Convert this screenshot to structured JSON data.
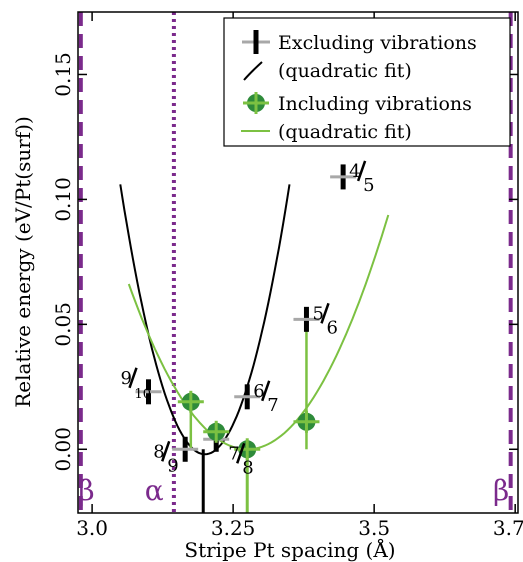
{
  "chart_data": {
    "type": "scatter",
    "xlabel": "Stripe Pt spacing (Å)",
    "ylabel": "Relative energy (eV/Pt(surf))",
    "xlim": [
      2.975,
      3.755
    ],
    "ylim": [
      -0.0255,
      0.175
    ],
    "xticks": [
      3.0,
      3.25,
      3.5,
      3.75
    ],
    "xtick_labels": [
      "3.0",
      "3.25",
      "3.5",
      "3.75"
    ],
    "yticks": [
      0.0,
      0.05,
      0.1,
      0.15
    ],
    "ytick_labels": [
      "0.00",
      "0.05",
      "0.10",
      "0.15"
    ],
    "grid": false,
    "legend_position": "top-right",
    "legend": [
      {
        "label_line1": "Excluding vibrations",
        "label_line2": "(quadratic fit)"
      },
      {
        "label_line1": "Including vibrations",
        "label_line2": "(quadratic fit)"
      }
    ],
    "series": [
      {
        "name": "Excluding vibrations",
        "color": "#000000",
        "marker_color": "#a8a8a8",
        "points": [
          {
            "label": "9/10",
            "num": "9",
            "den": "10",
            "x": 3.1,
            "y": 0.023,
            "err": 0.005
          },
          {
            "label": "8/9",
            "num": "8",
            "den": "9",
            "x": 3.165,
            "y": 0.0,
            "err": 0.005
          },
          {
            "label": "7/8",
            "num": "7",
            "den": "8",
            "x": 3.22,
            "y": 0.004,
            "err": 0.005
          },
          {
            "label": "6/7",
            "num": "6",
            "den": "7",
            "x": 3.275,
            "y": 0.021,
            "err": 0.005
          },
          {
            "label": "5/6",
            "num": "5",
            "den": "6",
            "x": 3.38,
            "y": 0.052,
            "err": 0.005
          },
          {
            "label": "4/5",
            "num": "4",
            "den": "5",
            "x": 3.445,
            "y": 0.109,
            "err": 0.005
          }
        ],
        "fit": {
          "vertex_x": 3.2,
          "vertex_y": -0.002,
          "a": 4.8,
          "x_range": [
            3.05,
            3.35
          ]
        }
      },
      {
        "name": "Including vibrations",
        "color": "#7cc142",
        "marker_color": "#2e8b3a",
        "points": [
          {
            "x": 3.175,
            "y": 0.019
          },
          {
            "x": 3.22,
            "y": 0.007
          },
          {
            "x": 3.275,
            "y": 0.0
          },
          {
            "x": 3.38,
            "y": 0.011
          }
        ],
        "fit": {
          "vertex_x": 3.275,
          "vertex_y": 0.0,
          "a": 1.5,
          "x_range": [
            3.065,
            3.525
          ]
        }
      }
    ],
    "phase_lines": [
      {
        "label": "β",
        "x": 2.98,
        "style": "dashed",
        "label_x": 2.99
      },
      {
        "label": "α",
        "x": 3.145,
        "style": "dotted",
        "label_x": 3.11
      },
      {
        "label": "β",
        "x": 3.742,
        "style": "dashed",
        "label_x": 3.725
      }
    ],
    "phase_color": "#7b2a8c"
  }
}
